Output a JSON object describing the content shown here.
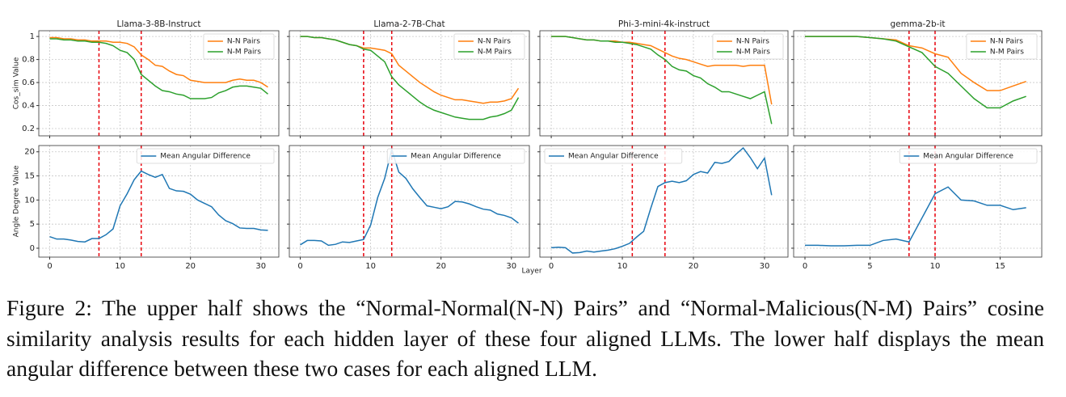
{
  "chart_data": [
    {
      "type": "line",
      "title": "Llama-3-8B-Instruct",
      "ylabel": "Cos_sim Value",
      "legend": "upper right",
      "grid": true,
      "show_xticklabels": false,
      "show_yticklabels": true,
      "x": [
        0,
        1,
        2,
        3,
        4,
        5,
        6,
        7,
        8,
        9,
        10,
        11,
        12,
        13,
        14,
        15,
        16,
        17,
        18,
        19,
        20,
        21,
        22,
        23,
        24,
        25,
        26,
        27,
        28,
        29,
        30,
        31
      ],
      "xlim": [
        -1.55,
        32.55
      ],
      "xticks": [
        0,
        10,
        20,
        30
      ],
      "ylim": [
        0.137,
        1.05
      ],
      "yticks": [
        0.2,
        0.4,
        0.6,
        0.8,
        1.0
      ],
      "vlines": [
        7,
        13
      ],
      "vline_color": "#e8000b",
      "series": [
        {
          "name": "N-N Pairs",
          "color": "#ff7f0e",
          "values": [
            0.99,
            0.99,
            0.98,
            0.98,
            0.97,
            0.97,
            0.96,
            0.96,
            0.96,
            0.95,
            0.95,
            0.94,
            0.91,
            0.84,
            0.8,
            0.75,
            0.74,
            0.7,
            0.67,
            0.66,
            0.62,
            0.61,
            0.6,
            0.6,
            0.6,
            0.6,
            0.62,
            0.63,
            0.62,
            0.62,
            0.6,
            0.56
          ]
        },
        {
          "name": "N-M Pairs",
          "color": "#2ca02c",
          "values": [
            0.98,
            0.98,
            0.97,
            0.97,
            0.96,
            0.96,
            0.95,
            0.95,
            0.94,
            0.92,
            0.88,
            0.86,
            0.8,
            0.67,
            0.62,
            0.57,
            0.53,
            0.52,
            0.5,
            0.49,
            0.46,
            0.46,
            0.46,
            0.47,
            0.51,
            0.53,
            0.56,
            0.57,
            0.57,
            0.56,
            0.55,
            0.5
          ]
        }
      ]
    },
    {
      "type": "line",
      "title": "Llama-2-7B-Chat",
      "legend": "upper right",
      "grid": true,
      "show_xticklabels": false,
      "show_yticklabels": false,
      "x": [
        0,
        1,
        2,
        3,
        4,
        5,
        6,
        7,
        8,
        9,
        10,
        11,
        12,
        13,
        14,
        15,
        16,
        17,
        18,
        19,
        20,
        21,
        22,
        23,
        24,
        25,
        26,
        27,
        28,
        29,
        30,
        31
      ],
      "xlim": [
        -1.55,
        32.55
      ],
      "xticks": [
        0,
        10,
        20,
        30
      ],
      "ylim": [
        0.137,
        1.05
      ],
      "yticks": [
        0.2,
        0.4,
        0.6,
        0.8,
        1.0
      ],
      "vlines": [
        9,
        13
      ],
      "vline_color": "#e8000b",
      "series": [
        {
          "name": "N-N Pairs",
          "color": "#ff7f0e",
          "values": [
            1.0,
            1.0,
            0.99,
            0.99,
            0.98,
            0.97,
            0.95,
            0.93,
            0.92,
            0.9,
            0.9,
            0.89,
            0.88,
            0.85,
            0.75,
            0.7,
            0.65,
            0.6,
            0.56,
            0.52,
            0.49,
            0.47,
            0.45,
            0.45,
            0.44,
            0.43,
            0.42,
            0.43,
            0.43,
            0.44,
            0.46,
            0.55
          ]
        },
        {
          "name": "N-M Pairs",
          "color": "#2ca02c",
          "values": [
            1.0,
            1.0,
            0.99,
            0.99,
            0.98,
            0.97,
            0.95,
            0.93,
            0.92,
            0.89,
            0.88,
            0.83,
            0.78,
            0.65,
            0.58,
            0.53,
            0.48,
            0.43,
            0.39,
            0.36,
            0.34,
            0.32,
            0.3,
            0.29,
            0.28,
            0.28,
            0.28,
            0.3,
            0.31,
            0.33,
            0.36,
            0.47
          ]
        }
      ]
    },
    {
      "type": "line",
      "title": "Phi-3-mini-4k-instruct",
      "legend": "upper right",
      "grid": true,
      "show_xticklabels": false,
      "show_yticklabels": false,
      "x": [
        0,
        1,
        2,
        3,
        4,
        5,
        6,
        7,
        8,
        9,
        10,
        11,
        12,
        13,
        14,
        15,
        16,
        17,
        18,
        19,
        20,
        21,
        22,
        23,
        24,
        25,
        26,
        27,
        28,
        29,
        30,
        31
      ],
      "xlim": [
        -1.6,
        33.3
      ],
      "xticks": [
        0,
        10,
        20,
        30
      ],
      "ylim": [
        0.137,
        1.05
      ],
      "yticks": [
        0.2,
        0.4,
        0.6,
        0.8,
        1.0
      ],
      "vlines": [
        11.4,
        16
      ],
      "vline_color": "#e8000b",
      "series": [
        {
          "name": "N-N Pairs",
          "color": "#ff7f0e",
          "values": [
            1.0,
            1.0,
            1.0,
            0.99,
            0.98,
            0.97,
            0.97,
            0.96,
            0.96,
            0.96,
            0.95,
            0.95,
            0.94,
            0.93,
            0.92,
            0.89,
            0.86,
            0.83,
            0.81,
            0.8,
            0.78,
            0.76,
            0.74,
            0.75,
            0.75,
            0.75,
            0.75,
            0.74,
            0.75,
            0.75,
            0.75,
            0.41
          ]
        },
        {
          "name": "N-M Pairs",
          "color": "#2ca02c",
          "values": [
            1.0,
            1.0,
            1.0,
            0.99,
            0.98,
            0.97,
            0.97,
            0.96,
            0.96,
            0.95,
            0.95,
            0.94,
            0.93,
            0.91,
            0.89,
            0.84,
            0.8,
            0.74,
            0.71,
            0.7,
            0.66,
            0.64,
            0.59,
            0.56,
            0.52,
            0.52,
            0.5,
            0.48,
            0.46,
            0.49,
            0.52,
            0.24
          ]
        }
      ]
    },
    {
      "type": "line",
      "title": "gemma-2b-it",
      "legend": "upper right",
      "grid": true,
      "show_xticklabels": false,
      "show_yticklabels": false,
      "x": [
        0,
        1,
        2,
        3,
        4,
        5,
        6,
        7,
        8,
        9,
        10,
        11,
        12,
        13,
        14,
        15,
        16,
        17
      ],
      "xlim": [
        -0.87,
        18.2
      ],
      "xticks": [
        0,
        5,
        10,
        15
      ],
      "ylim": [
        0.137,
        1.05
      ],
      "yticks": [
        0.2,
        0.4,
        0.6,
        0.8,
        1.0
      ],
      "vlines": [
        8,
        10
      ],
      "vline_color": "#e8000b",
      "series": [
        {
          "name": "N-N Pairs",
          "color": "#ff7f0e",
          "values": [
            1.0,
            1.0,
            1.0,
            1.0,
            1.0,
            0.99,
            0.98,
            0.97,
            0.92,
            0.9,
            0.85,
            0.82,
            0.68,
            0.6,
            0.53,
            0.53,
            0.57,
            0.61
          ]
        },
        {
          "name": "N-M Pairs",
          "color": "#2ca02c",
          "values": [
            1.0,
            1.0,
            1.0,
            1.0,
            1.0,
            0.99,
            0.98,
            0.96,
            0.91,
            0.86,
            0.74,
            0.68,
            0.57,
            0.46,
            0.38,
            0.38,
            0.44,
            0.48
          ]
        }
      ]
    },
    {
      "type": "line",
      "ylabel": "Angle Degree Value",
      "legend": "upper right",
      "grid": true,
      "show_xticklabels": true,
      "show_yticklabels": true,
      "x": [
        0,
        1,
        2,
        3,
        4,
        5,
        6,
        7,
        8,
        9,
        10,
        11,
        12,
        13,
        14,
        15,
        16,
        17,
        18,
        19,
        20,
        21,
        22,
        23,
        24,
        25,
        26,
        27,
        28,
        29,
        30,
        31
      ],
      "xlim": [
        -1.55,
        32.55
      ],
      "xticks": [
        0,
        10,
        20,
        30
      ],
      "ylim": [
        -1.85,
        21.3
      ],
      "yticks": [
        0,
        5,
        10,
        15,
        20
      ],
      "vlines": [
        7,
        13
      ],
      "vline_color": "#e8000b",
      "series": [
        {
          "name": "Mean Angular Difference",
          "color": "#1f77b4",
          "values": [
            2.4,
            1.9,
            1.9,
            1.7,
            1.4,
            1.3,
            2.0,
            2.0,
            2.8,
            4.0,
            8.8,
            11.3,
            14.2,
            16.0,
            15.3,
            14.7,
            15.3,
            12.4,
            11.9,
            11.8,
            11.2,
            10.0,
            9.3,
            8.6,
            6.9,
            5.7,
            5.1,
            4.2,
            4.1,
            4.1,
            3.8,
            3.7
          ]
        }
      ]
    },
    {
      "type": "line",
      "xlabel": "Layer",
      "legend": "upper right",
      "grid": true,
      "show_xticklabels": true,
      "show_yticklabels": false,
      "x": [
        0,
        1,
        2,
        3,
        4,
        5,
        6,
        7,
        8,
        9,
        10,
        11,
        12,
        13,
        14,
        15,
        16,
        17,
        18,
        19,
        20,
        21,
        22,
        23,
        24,
        25,
        26,
        27,
        28,
        29,
        30,
        31
      ],
      "xlim": [
        -1.55,
        32.55
      ],
      "xticks": [
        0,
        10,
        20,
        30
      ],
      "ylim": [
        -1.85,
        21.3
      ],
      "yticks": [
        0,
        5,
        10,
        15,
        20
      ],
      "vlines": [
        9,
        13
      ],
      "vline_color": "#e8000b",
      "series": [
        {
          "name": "Mean Angular Difference",
          "color": "#1f77b4",
          "values": [
            0.7,
            1.6,
            1.6,
            1.5,
            0.6,
            0.8,
            1.3,
            1.2,
            1.5,
            1.8,
            4.8,
            10.5,
            14.5,
            20.5,
            15.8,
            14.5,
            12.3,
            10.5,
            8.8,
            8.5,
            8.2,
            8.6,
            9.7,
            9.6,
            9.2,
            8.6,
            8.1,
            7.9,
            7.1,
            6.8,
            6.3,
            5.2
          ]
        }
      ]
    },
    {
      "type": "line",
      "legend": "upper left",
      "grid": true,
      "show_xticklabels": true,
      "show_yticklabels": false,
      "x": [
        0,
        1,
        2,
        3,
        4,
        5,
        6,
        7,
        8,
        9,
        10,
        11,
        12,
        13,
        14,
        15,
        16,
        17,
        18,
        19,
        20,
        21,
        22,
        23,
        24,
        25,
        26,
        27,
        28,
        29,
        30,
        31
      ],
      "xlim": [
        -1.6,
        33.3
      ],
      "xticks": [
        0,
        10,
        20,
        30
      ],
      "ylim": [
        -1.85,
        21.3
      ],
      "yticks": [
        0,
        5,
        10,
        15,
        20
      ],
      "vlines": [
        11.4,
        16
      ],
      "vline_color": "#e8000b",
      "series": [
        {
          "name": "Mean Angular Difference",
          "color": "#1f77b4",
          "values": [
            0.1,
            0.2,
            0.1,
            -1.0,
            -0.9,
            -0.6,
            -0.8,
            -0.6,
            -0.4,
            -0.1,
            0.4,
            1.0,
            2.3,
            3.5,
            8.3,
            12.8,
            13.6,
            13.9,
            13.6,
            14.0,
            15.3,
            15.9,
            15.6,
            17.8,
            17.6,
            18.0,
            19.5,
            20.8,
            18.8,
            16.5,
            18.7,
            11.0
          ]
        }
      ]
    },
    {
      "type": "line",
      "legend": "upper right",
      "grid": true,
      "show_xticklabels": true,
      "show_yticklabels": false,
      "x": [
        0,
        1,
        2,
        3,
        4,
        5,
        6,
        7,
        8,
        9,
        10,
        11,
        12,
        13,
        14,
        15,
        16,
        17
      ],
      "xlim": [
        -0.87,
        18.2
      ],
      "xticks": [
        0,
        5,
        10,
        15
      ],
      "ylim": [
        -1.85,
        21.3
      ],
      "yticks": [
        0,
        5,
        10,
        15,
        20
      ],
      "vlines": [
        8,
        10
      ],
      "vline_color": "#e8000b",
      "series": [
        {
          "name": "Mean Angular Difference",
          "color": "#1f77b4",
          "values": [
            0.6,
            0.6,
            0.5,
            0.5,
            0.6,
            0.6,
            1.6,
            1.9,
            1.3,
            6.3,
            11.3,
            12.7,
            10.0,
            9.8,
            8.9,
            8.9,
            8.0,
            8.4
          ]
        }
      ]
    }
  ],
  "caption": "Figure 2: The upper half shows the “Normal-Normal(N-N) Pairs” and “Normal-Malicious(N-M) Pairs” cosine similarity analysis results for each hidden layer of these four aligned LLMs. The lower half displays the mean angular difference between these two cases for each aligned LLM."
}
